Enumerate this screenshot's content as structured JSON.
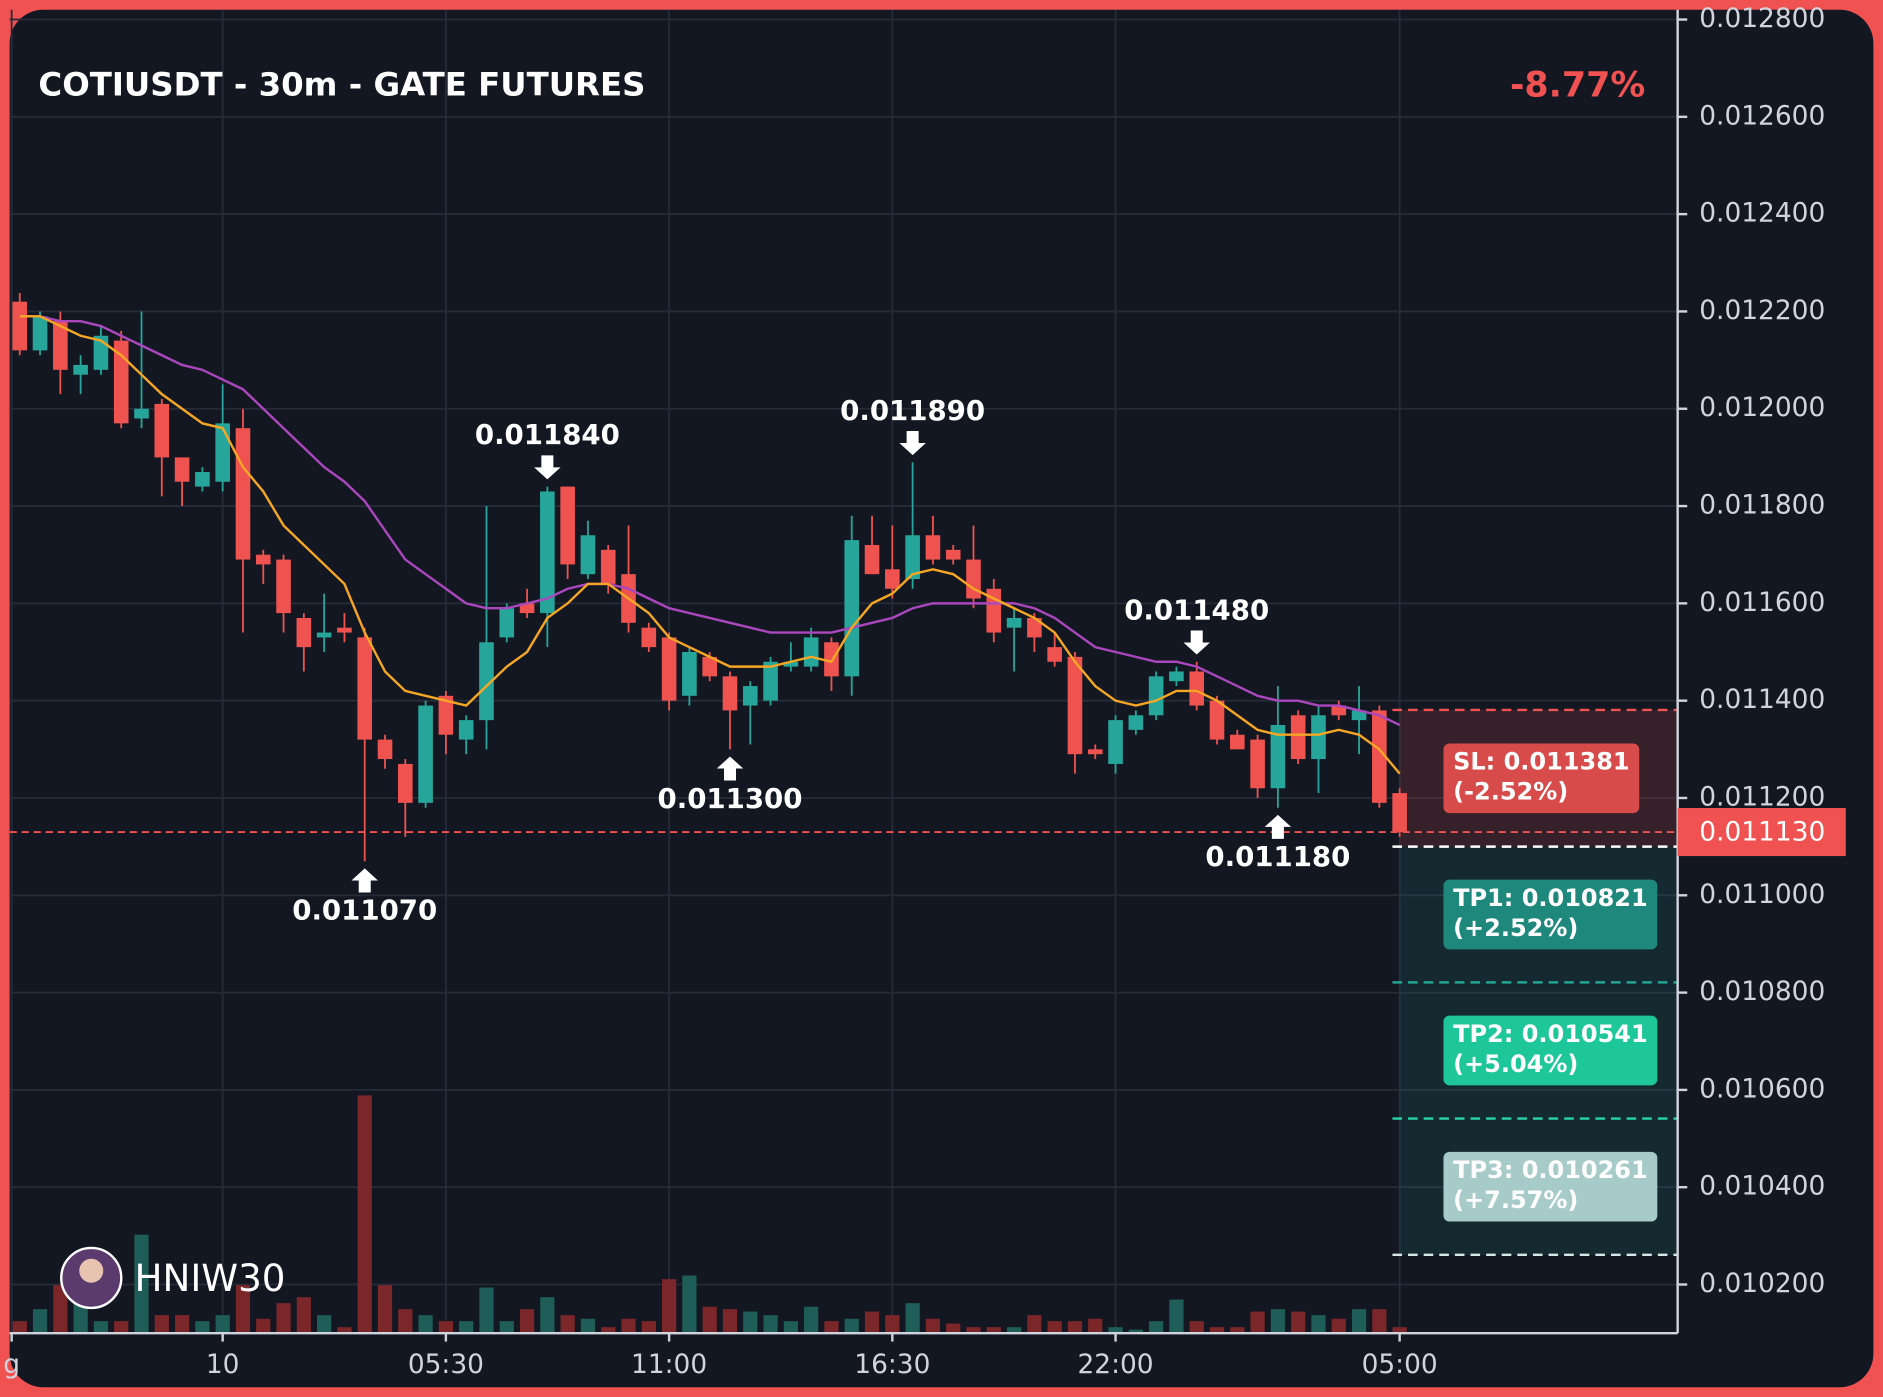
{
  "chart_data": {
    "type": "candlestick",
    "title": "COTIUSDT - 30m - GATE FUTURES",
    "change": "-8.77%",
    "watermark": "HNIW30",
    "grid": true,
    "up_color": "#26a69a",
    "down_color": "#ef5350",
    "up_volume_color": "#1f5e58",
    "down_volume_color": "#7b2729",
    "xlim": [
      -0.5,
      81.7
    ],
    "xticks": [
      {
        "value": -0.4,
        "label": "g"
      },
      {
        "value": 10,
        "label": "10"
      },
      {
        "value": 21,
        "label": "05:30"
      },
      {
        "value": 32,
        "label": "11:00"
      },
      {
        "value": 43,
        "label": "16:30"
      },
      {
        "value": 54,
        "label": "22:00"
      },
      {
        "value": 68,
        "label": "05:00"
      }
    ],
    "ylim": [
      0.0101,
      0.01282
    ],
    "yticks": [
      {
        "value": 0.0102,
        "label": "0.010200"
      },
      {
        "value": 0.0104,
        "label": "0.010400"
      },
      {
        "value": 0.0106,
        "label": "0.010600"
      },
      {
        "value": 0.0108,
        "label": "0.010800"
      },
      {
        "value": 0.011,
        "label": "0.011000"
      },
      {
        "value": 0.0112,
        "label": "0.011200"
      },
      {
        "value": 0.0114,
        "label": "0.011400"
      },
      {
        "value": 0.0116,
        "label": "0.011600"
      },
      {
        "value": 0.0118,
        "label": "0.011800"
      },
      {
        "value": 0.012,
        "label": "0.012000"
      },
      {
        "value": 0.0122,
        "label": "0.012200"
      },
      {
        "value": 0.0124,
        "label": "0.012400"
      },
      {
        "value": 0.0126,
        "label": "0.012600"
      },
      {
        "value": 0.0128,
        "label": "0.012800"
      }
    ],
    "open": [
      0.01222,
      0.01212,
      0.01218,
      0.01207,
      0.01208,
      0.01214,
      0.01198,
      0.01201,
      0.0119,
      0.01184,
      0.01185,
      0.01196,
      0.0117,
      0.01169,
      0.01157,
      0.01153,
      0.01155,
      0.01153,
      0.01132,
      0.01127,
      0.01119,
      0.01141,
      0.01132,
      0.01136,
      0.01153,
      0.0116,
      0.01158,
      0.01184,
      0.01166,
      0.01171,
      0.01166,
      0.01155,
      0.01153,
      0.01141,
      0.01149,
      0.01145,
      0.01139,
      0.0114,
      0.01147,
      0.01147,
      0.01152,
      0.01145,
      0.01172,
      0.01167,
      0.01165,
      0.01174,
      0.01171,
      0.01169,
      0.01163,
      0.01155,
      0.01157,
      0.01151,
      0.01149,
      0.0113,
      0.01127,
      0.01134,
      0.01137,
      0.01144,
      0.01146,
      0.0114,
      0.01133,
      0.01132,
      0.01122,
      0.01137,
      0.01128,
      0.01139,
      0.01136,
      0.01138,
      0.01121
    ],
    "high": [
      0.012238,
      0.0122,
      0.0122,
      0.01211,
      0.01217,
      0.01216,
      0.0122,
      0.01202,
      0.0119,
      0.01188,
      0.01205,
      0.012,
      0.01171,
      0.0117,
      0.01158,
      0.01162,
      0.01158,
      0.01155,
      0.01133,
      0.01128,
      0.0114,
      0.01142,
      0.01137,
      0.0118,
      0.0116,
      0.01163,
      0.01184,
      0.01184,
      0.01177,
      0.01172,
      0.01176,
      0.01156,
      0.01154,
      0.01151,
      0.0115,
      0.01146,
      0.01144,
      0.01149,
      0.01152,
      0.01155,
      0.01153,
      0.01178,
      0.01178,
      0.01176,
      0.01189,
      0.01178,
      0.01172,
      0.01176,
      0.01165,
      0.01159,
      0.01158,
      0.01154,
      0.0115,
      0.01131,
      0.01137,
      0.01138,
      0.01146,
      0.01147,
      0.01148,
      0.01141,
      0.01134,
      0.01133,
      0.01143,
      0.01138,
      0.01139,
      0.0114,
      0.01143,
      0.01139,
      0.01122
    ],
    "low": [
      0.01211,
      0.01211,
      0.01203,
      0.01203,
      0.01207,
      0.01196,
      0.01196,
      0.01182,
      0.0118,
      0.01183,
      0.01183,
      0.01154,
      0.01164,
      0.01154,
      0.01146,
      0.0115,
      0.01152,
      0.01107,
      0.01126,
      0.01112,
      0.01118,
      0.01129,
      0.01129,
      0.0113,
      0.01152,
      0.01157,
      0.01151,
      0.01165,
      0.01165,
      0.01162,
      0.01154,
      0.0115,
      0.01138,
      0.01139,
      0.01144,
      0.0113,
      0.01131,
      0.01139,
      0.01146,
      0.01146,
      0.01142,
      0.01141,
      0.01166,
      0.01161,
      0.01163,
      0.01168,
      0.01168,
      0.01159,
      0.01152,
      0.01146,
      0.0115,
      0.01147,
      0.01125,
      0.01128,
      0.01125,
      0.01133,
      0.01136,
      0.01143,
      0.01138,
      0.01131,
      0.0113,
      0.0112,
      0.01118,
      0.01127,
      0.01121,
      0.01136,
      0.01129,
      0.01118,
      0.01112
    ],
    "close": [
      0.01212,
      0.01219,
      0.01208,
      0.01209,
      0.01215,
      0.01197,
      0.012,
      0.0119,
      0.01185,
      0.01187,
      0.01197,
      0.01169,
      0.01168,
      0.01158,
      0.01151,
      0.01154,
      0.01154,
      0.01132,
      0.01128,
      0.01119,
      0.01139,
      0.01133,
      0.01136,
      0.01152,
      0.01159,
      0.01158,
      0.01183,
      0.01168,
      0.01174,
      0.01164,
      0.01156,
      0.01151,
      0.0114,
      0.0115,
      0.01145,
      0.01138,
      0.01143,
      0.01148,
      0.01148,
      0.01153,
      0.01145,
      0.01173,
      0.01166,
      0.01163,
      0.01174,
      0.01169,
      0.01169,
      0.01161,
      0.01154,
      0.01157,
      0.01153,
      0.01148,
      0.01129,
      0.01129,
      0.01136,
      0.01137,
      0.01145,
      0.01146,
      0.01139,
      0.01132,
      0.0113,
      0.01122,
      0.01135,
      0.01128,
      0.01137,
      0.01137,
      0.01138,
      0.01119,
      0.01113
    ],
    "volume": [
      10,
      20,
      40,
      25,
      10,
      10,
      82,
      15,
      15,
      10,
      15,
      40,
      12,
      25,
      30,
      15,
      5,
      198,
      40,
      20,
      15,
      10,
      10,
      38,
      10,
      20,
      30,
      15,
      12,
      5,
      12,
      10,
      45,
      48,
      22,
      20,
      18,
      15,
      10,
      22,
      10,
      12,
      18,
      15,
      25,
      12,
      8,
      5,
      5,
      5,
      15,
      10,
      10,
      12,
      5,
      3,
      10,
      28,
      10,
      5,
      5,
      18,
      20,
      18,
      15,
      12,
      20,
      20,
      5
    ],
    "moving_averages": [
      {
        "color": "#ab47bc",
        "values": [
          0.01219,
          0.01219,
          0.01218,
          0.01218,
          0.01217,
          0.01215,
          0.01213,
          0.01211,
          0.01209,
          0.01208,
          0.01206,
          0.01204,
          0.012,
          0.01196,
          0.01192,
          0.01188,
          0.01185,
          0.01181,
          0.01175,
          0.01169,
          0.01166,
          0.01163,
          0.0116,
          0.01159,
          0.01159,
          0.0116,
          0.01161,
          0.01163,
          0.01164,
          0.01164,
          0.01163,
          0.01161,
          0.01159,
          0.01158,
          0.01157,
          0.01156,
          0.01155,
          0.01154,
          0.01154,
          0.01154,
          0.01154,
          0.01155,
          0.01156,
          0.01157,
          0.01159,
          0.0116,
          0.0116,
          0.0116,
          0.0116,
          0.0116,
          0.01159,
          0.01157,
          0.01154,
          0.01151,
          0.0115,
          0.01149,
          0.01148,
          0.01148,
          0.01147,
          0.01145,
          0.01143,
          0.01141,
          0.0114,
          0.0114,
          0.01139,
          0.01139,
          0.01138,
          0.01137,
          0.01135
        ]
      },
      {
        "color": "#f5a623",
        "values": [
          0.01219,
          0.01219,
          0.01217,
          0.01215,
          0.01214,
          0.01211,
          0.01207,
          0.01203,
          0.012,
          0.01197,
          0.01196,
          0.01188,
          0.01183,
          0.01176,
          0.01172,
          0.01168,
          0.01164,
          0.01154,
          0.01146,
          0.01142,
          0.01141,
          0.0114,
          0.01139,
          0.01143,
          0.01147,
          0.0115,
          0.01157,
          0.0116,
          0.01164,
          0.01164,
          0.01161,
          0.01158,
          0.01153,
          0.01151,
          0.01149,
          0.01147,
          0.01147,
          0.01147,
          0.01148,
          0.01149,
          0.01148,
          0.01155,
          0.0116,
          0.01162,
          0.01166,
          0.01167,
          0.01166,
          0.01163,
          0.01161,
          0.01159,
          0.01157,
          0.01154,
          0.01148,
          0.01143,
          0.0114,
          0.01139,
          0.0114,
          0.01142,
          0.01142,
          0.0114,
          0.01137,
          0.01134,
          0.01133,
          0.01133,
          0.01133,
          0.01134,
          0.01133,
          0.0113,
          0.01125
        ]
      }
    ],
    "annotations": [
      {
        "index": 26,
        "value": 0.01184,
        "label": "0.011840",
        "kind": "high"
      },
      {
        "index": 44,
        "value": 0.01189,
        "label": "0.011890",
        "kind": "high"
      },
      {
        "index": 58,
        "value": 0.01148,
        "label": "0.011480",
        "kind": "high"
      },
      {
        "index": 17,
        "value": 0.01107,
        "label": "0.011070",
        "kind": "low"
      },
      {
        "index": 35,
        "value": 0.0113,
        "label": "0.011300",
        "kind": "low"
      },
      {
        "index": 62,
        "value": 0.01118,
        "label": "0.011180",
        "kind": "low"
      }
    ],
    "last_price": {
      "value": 0.01113,
      "label": "0.011130",
      "color": "#f05252"
    },
    "entry": 0.0111,
    "levels": [
      {
        "value": 0.011381,
        "label": "SL: 0.011381",
        "change": "(-2.52%)",
        "color": "#d84b4b",
        "line_color": "#f05252"
      },
      {
        "value": 0.010821,
        "label": "TP1: 0.010821",
        "change": "(+2.52%)",
        "color": "#1f887d",
        "line_color": "#22a393"
      },
      {
        "value": 0.010541,
        "label": "TP2: 0.010541",
        "change": "(+5.04%)",
        "color": "#1dc79a",
        "line_color": "#26d6a8"
      },
      {
        "value": 0.010261,
        "label": "TP3: 0.010261",
        "change": "(+7.57%)",
        "color": "#a6cbc8",
        "line_color": "#d6e8e5"
      }
    ]
  }
}
